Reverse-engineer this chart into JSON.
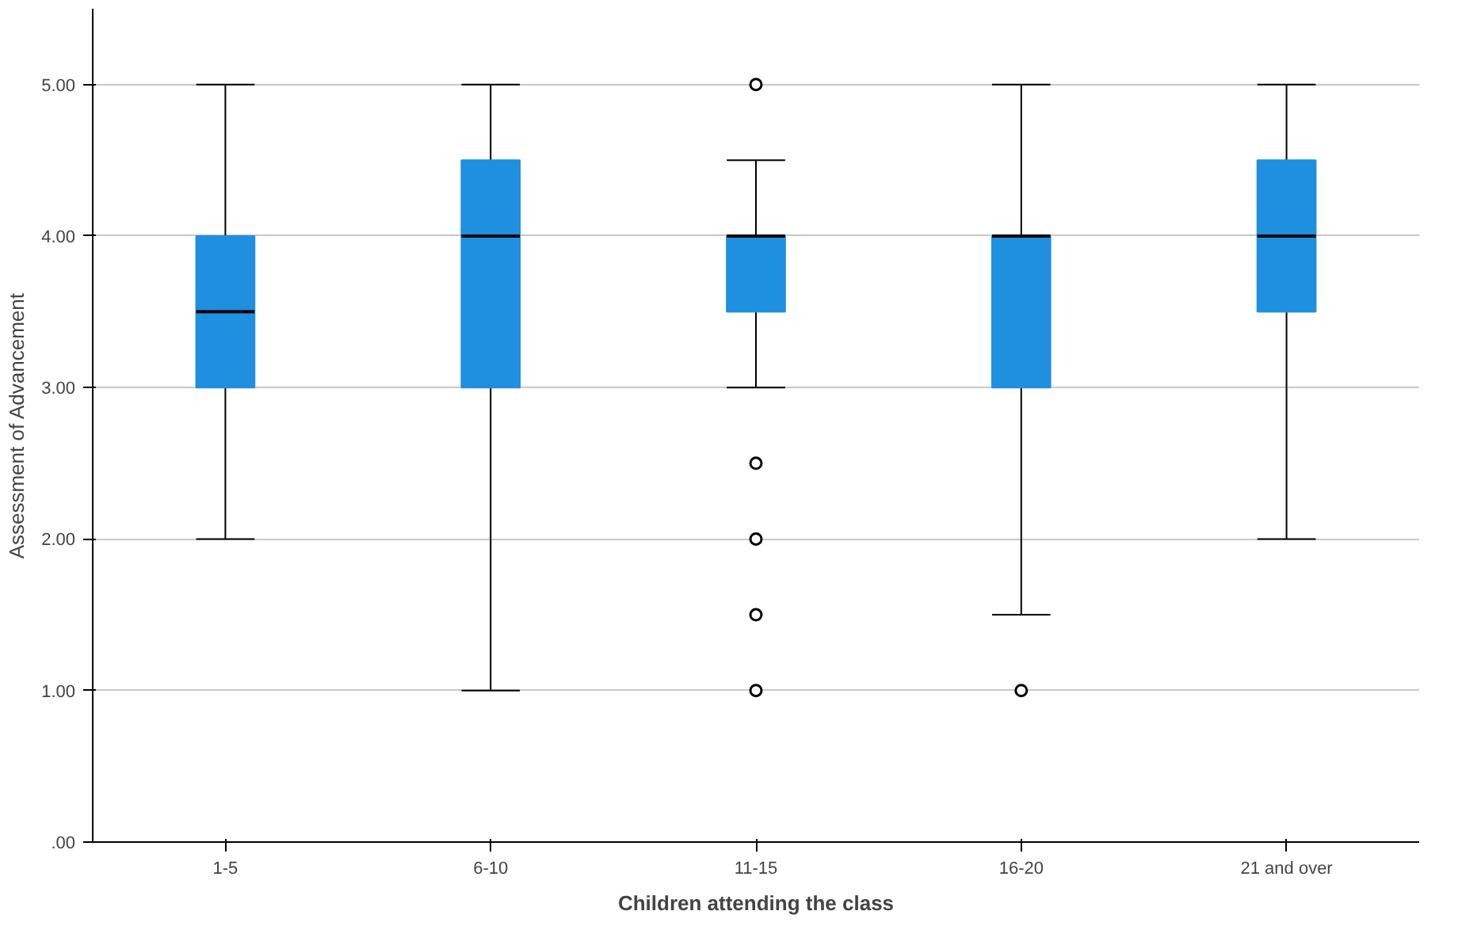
{
  "chart_data": {
    "type": "box",
    "xlabel": "Children attending the class",
    "ylabel": "Assessment of Advancement",
    "categories": [
      "1-5",
      "6-10",
      "11-15",
      "16-20",
      "21 and over"
    ],
    "color": "#1f8fe0",
    "boxes": [
      {
        "low": 2,
        "q1": 3,
        "median": 3.5,
        "q3": 4,
        "high": 5
      },
      {
        "low": 1,
        "q1": 3,
        "median": 4,
        "q3": 4.5,
        "high": 5
      },
      {
        "low": 3,
        "q1": 3.5,
        "median": 4,
        "q3": 4,
        "high": 4.5,
        "outliers": [
          5,
          2.5,
          2,
          1.5,
          1
        ]
      },
      {
        "low": 1.5,
        "q1": 3,
        "median": 4,
        "q3": 4,
        "high": 5,
        "outliers": [
          1
        ]
      },
      {
        "low": 2,
        "q1": 3.5,
        "median": 4,
        "q3": 4.5,
        "high": 5
      }
    ],
    "ylim": [
      0,
      5.5
    ],
    "yticks": [
      {
        "value": 0,
        "label": ".00"
      },
      {
        "value": 1,
        "label": "1.00"
      },
      {
        "value": 2,
        "label": "2.00"
      },
      {
        "value": 3,
        "label": "3.00"
      },
      {
        "value": 4,
        "label": "4.00"
      },
      {
        "value": 5,
        "label": "5.00"
      }
    ],
    "grid": "y",
    "marker": "circle"
  }
}
